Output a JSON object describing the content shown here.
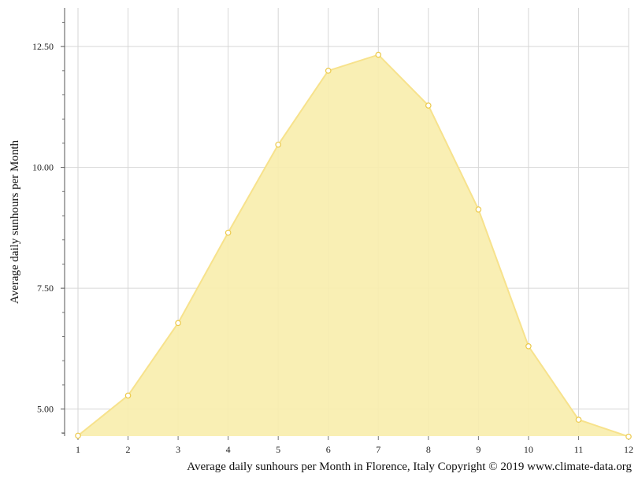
{
  "chart_data": {
    "type": "area",
    "x": [
      1,
      2,
      3,
      4,
      5,
      6,
      7,
      8,
      9,
      10,
      11,
      12
    ],
    "series": [
      {
        "values": [
          4.45,
          5.28,
          6.78,
          8.65,
          10.47,
          12.0,
          12.33,
          11.28,
          9.13,
          6.3,
          4.78,
          4.43
        ],
        "color": "#f5d96b"
      }
    ],
    "ylabel": "Average daily sunhours per Month",
    "xlabel": "",
    "caption": "Average daily sunhours per Month in Florence, Italy Copyright © 2019 www.climate-data.org",
    "xlim": [
      1,
      12
    ],
    "ylim": [
      4.44,
      13.3
    ],
    "yticks": [
      "5.00",
      "7.50",
      "10.00",
      "12.50"
    ],
    "xticks": [
      "1",
      "2",
      "3",
      "4",
      "5",
      "6",
      "7",
      "8",
      "9",
      "10",
      "11",
      "12"
    ],
    "grid": true,
    "fill_color": "#f9eeae",
    "line_color": "#f7e28c",
    "marker_stroke": "#ecc94a"
  }
}
